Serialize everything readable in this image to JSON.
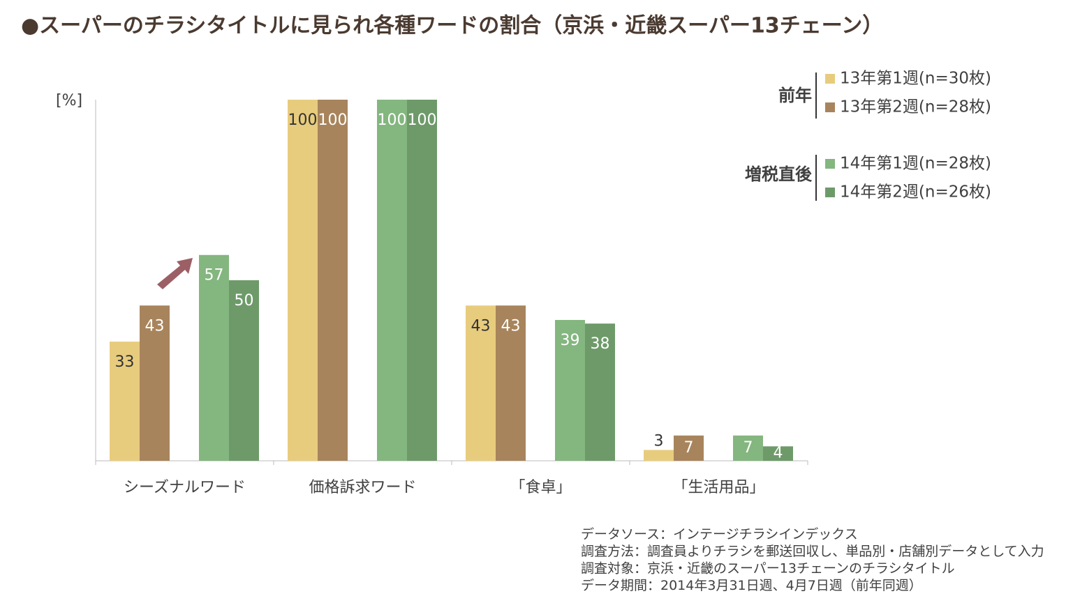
{
  "chart_data": {
    "type": "bar",
    "title": "●スーパーのチラシタイトルに見られ各種ワードの割合（京浜・近畿スーパー13チェーン）",
    "y_label": "[%]",
    "categories": [
      "シーズナルワード",
      "価格訴求ワード",
      "「食卓」",
      "「生活用品」"
    ],
    "series": [
      {
        "name": "13年第1週(n=30枚)",
        "color": "#e8cc7e",
        "values": [
          33,
          100,
          43,
          3
        ]
      },
      {
        "name": "13年第2週(n=28枚)",
        "color": "#a8845c",
        "values": [
          43,
          100,
          43,
          7
        ]
      },
      {
        "name": "14年第1週(n=28枚)",
        "color": "#84b67f",
        "values": [
          57,
          100,
          39,
          7
        ]
      },
      {
        "name": "14年第2週(n=26枚)",
        "color": "#6e9a6a",
        "values": [
          50,
          100,
          38,
          4
        ]
      }
    ],
    "legend_groups": [
      "前年",
      "増税直後"
    ],
    "ylim": [
      0,
      100
    ],
    "notes": [
      "データソース：インテージチラシインデックス",
      "調査方法：調査員よりチラシを郵送回収し、単品別・店舗別データとして入力",
      "調査対象：京浜・近畿のスーパー13チェーンのチラシタイトル",
      "データ期間：2014年3月31日週、4月7日週（前年同週）"
    ]
  }
}
